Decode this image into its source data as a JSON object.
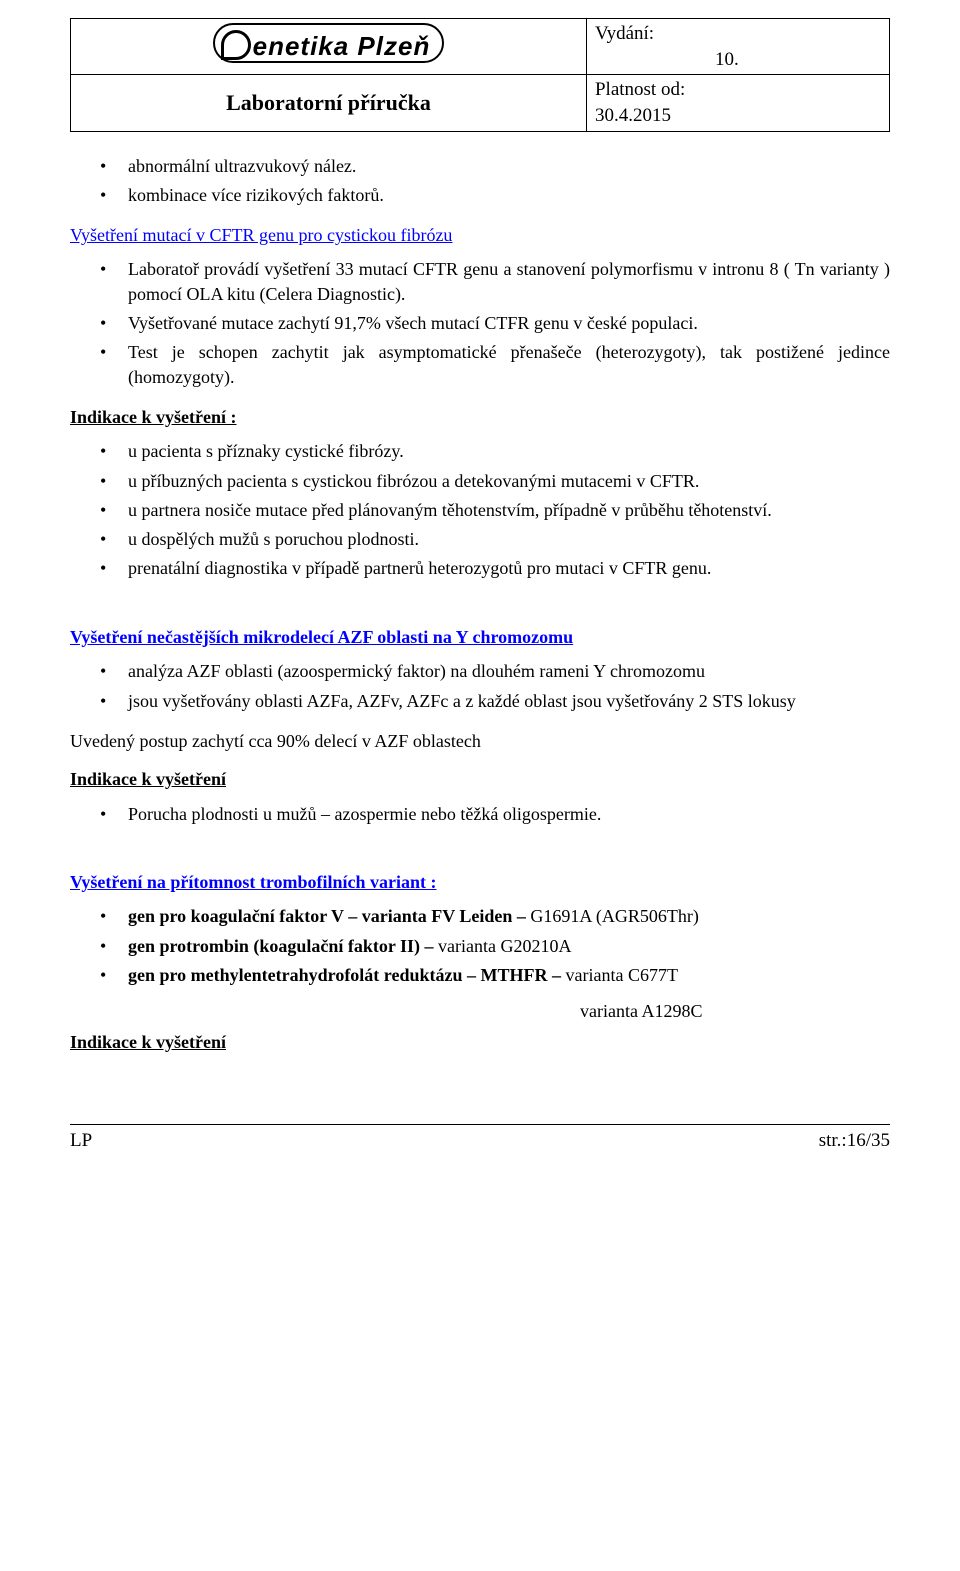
{
  "header": {
    "logo_text": "enetika Plzeň",
    "title": "Laboratorní příručka",
    "issue_label": "Vydání:",
    "issue_num": "10.",
    "validity_label": "Platnost od:",
    "validity_date": "30.4.2015"
  },
  "list_top": [
    "abnormální ultrazvukový nález.",
    "kombinace více rizikových faktorů."
  ],
  "sec_cftr": {
    "title": "Vyšetření mutací v CFTR genu pro cystickou fibrózu",
    "items": [
      "Laboratoř provádí vyšetření 33 mutací CFTR genu a stanovení polymorfismu v intronu 8 ( Tn varianty ) pomocí OLA kitu (Celera Diagnostic).",
      "Vyšetřované mutace zachytí 91,7% všech mutací CTFR genu v české populaci.",
      "Test je schopen zachytit jak asymptomatické přenašeče (heterozygoty), tak postižené jedince (homozygoty)."
    ]
  },
  "ind1": {
    "title": "Indikace k vyšetření :",
    "items": [
      "u pacienta s příznaky cystické fibrózy.",
      "u příbuzných pacienta s cystickou fibrózou a detekovanými mutacemi v CFTR.",
      "u partnera nosiče mutace před plánovaným těhotenstvím, případně v průběhu těhotenství.",
      "u dospělých mužů s poruchou plodnosti.",
      "prenatální diagnostika v případě partnerů heterozygotů pro mutaci v CFTR genu."
    ]
  },
  "sec_azf": {
    "title": "Vyšetření nečastějších mikrodelecí AZF oblasti na Y chromozomu",
    "items": [
      "analýza AZF oblasti (azoospermický faktor) na dlouhém rameni Y chromozomu",
      "jsou vyšetřovány oblasti AZFa, AZFv, AZFc a z každé oblast jsou vyšetřovány 2 STS lokusy"
    ],
    "note": "Uvedený postup zachytí cca 90% delecí v AZF oblastech"
  },
  "ind2": {
    "title": "Indikace k vyšetření",
    "items": [
      "Porucha plodnosti u mužů – azospermie nebo těžká oligospermie."
    ]
  },
  "sec_thromb": {
    "title": "Vyšetření na přítomnost trombofilních variant :",
    "item1_b": "gen pro koagulační faktor V – varianta FV Leiden – ",
    "item1_r": "G1691A (AGR506Thr)",
    "item2_b": "gen protrombin (koagulační faktor II) – ",
    "item2_r": "varianta G20210A",
    "item3_b": "gen pro methylentetrahydrofolát reduktázu – MTHFR – ",
    "item3_r": "varianta C677T",
    "item3_r2": "varianta A1298C"
  },
  "ind3_title": "Indikace k vyšetření",
  "footer": {
    "left": "LP",
    "right": "str.:16/35"
  }
}
